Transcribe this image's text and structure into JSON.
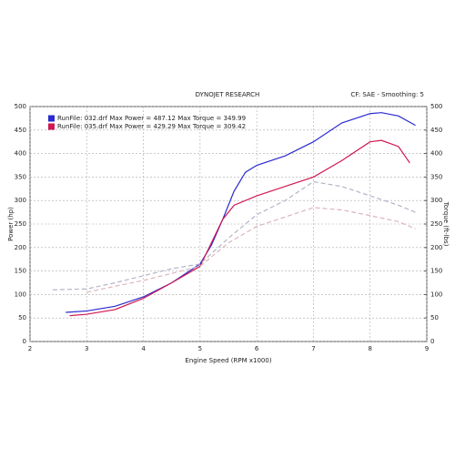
{
  "chart_data": {
    "type": "line",
    "title": "DYNOJET RESEARCH",
    "subtitle": "CF: SAE - Smoothing: 5",
    "x_label": "Engine Speed (RPM x1000)",
    "y_label": "Power (hp)",
    "y2_label": "Torque (ft-lbs)",
    "xlim": [
      2,
      9
    ],
    "xticks": [
      2,
      3,
      4,
      5,
      6,
      7,
      8,
      9
    ],
    "ylim": [
      0,
      500
    ],
    "yticks": [
      0,
      50,
      100,
      150,
      200,
      250,
      300,
      350,
      400,
      450,
      500
    ],
    "y2lim": [
      0,
      500
    ],
    "y2ticks": [
      0,
      50,
      100,
      150,
      200,
      250,
      300,
      350,
      400,
      450,
      500
    ],
    "grid": true,
    "legend": "top-left",
    "series": [
      {
        "name": "RunFile: 032.drf Max Power = 487.12 Max Torque = 349.99",
        "color": "#2a2ad0",
        "line_style": "solid",
        "x": [
          2.63,
          3,
          3.5,
          4,
          4.5,
          5,
          5.2,
          5.4,
          5.6,
          5.8,
          6,
          6.5,
          7,
          7.5,
          8,
          8.2,
          8.5,
          8.8
        ],
        "values": [
          62,
          65,
          75,
          95,
          125,
          165,
          205,
          260,
          320,
          360,
          375,
          395,
          425,
          465,
          485,
          487,
          480,
          460
        ]
      },
      {
        "name": "RunFile: 035.drf Max Power = 429.29 Max Torque = 309.42",
        "color": "#d01850",
        "line_style": "solid",
        "x": [
          2.7,
          3,
          3.5,
          4,
          4.5,
          5,
          5.2,
          5.4,
          5.6,
          6,
          6.5,
          7,
          7.5,
          8,
          8.2,
          8.5,
          8.7
        ],
        "values": [
          55,
          58,
          68,
          92,
          125,
          160,
          210,
          260,
          290,
          310,
          330,
          350,
          385,
          425,
          428,
          415,
          380
        ]
      },
      {
        "color": "#b4b4c8",
        "line_style": "dashed",
        "axis": "y2",
        "x": [
          2.4,
          3,
          3.5,
          4,
          4.5,
          5,
          5.5,
          6,
          6.5,
          7,
          7.5,
          8,
          8.5,
          8.8
        ],
        "values": [
          110,
          112,
          125,
          140,
          155,
          165,
          220,
          270,
          300,
          340,
          330,
          310,
          290,
          275
        ]
      },
      {
        "color": "#dcb4bc",
        "line_style": "dashed",
        "axis": "y2",
        "x": [
          3,
          4,
          5,
          5.5,
          6,
          6.5,
          7,
          7.5,
          8,
          8.5,
          8.8
        ],
        "values": [
          105,
          130,
          160,
          210,
          245,
          265,
          285,
          280,
          268,
          255,
          240
        ]
      }
    ]
  }
}
